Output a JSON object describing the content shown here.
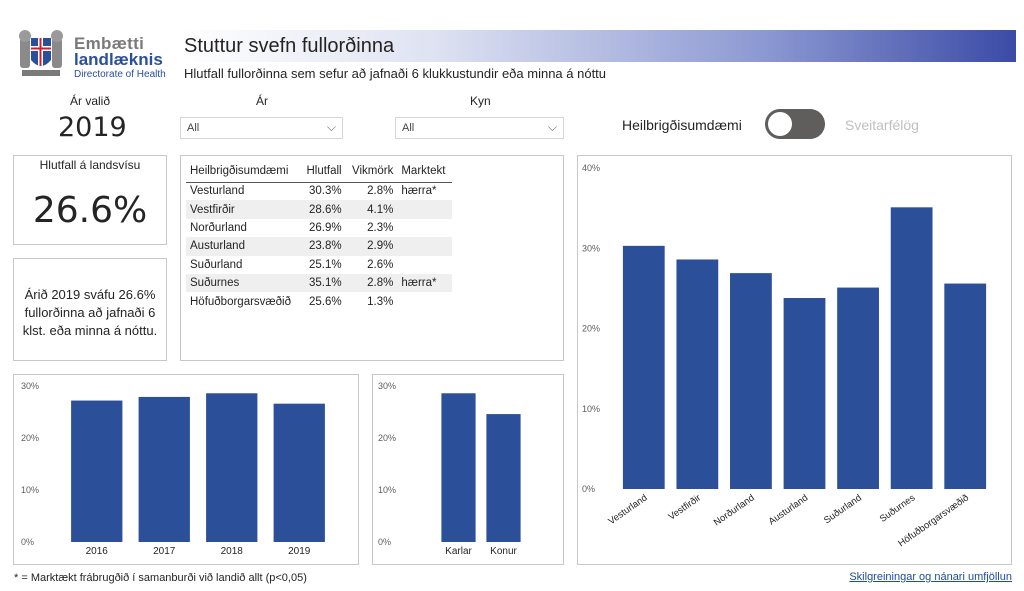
{
  "logo": {
    "line1": "Embætti",
    "line2": "landlæknis",
    "line3": "Directorate of Health"
  },
  "header": {
    "title": "Stuttur svefn fullorðinna",
    "subtitle": "Hlutfall fullorðinna sem sefur að jafnaði 6 klukkustundir eða minna á nóttu"
  },
  "selected_year": {
    "label": "Ár valið",
    "value": "2019"
  },
  "slicers": {
    "year": {
      "label": "Ár",
      "value": "All"
    },
    "gender": {
      "label": "Kyn",
      "value": "All"
    }
  },
  "toggle": {
    "left_label": "Heilbrigðisumdæmi",
    "right_label": "Sveitarfélög",
    "state": "left"
  },
  "kpi": {
    "title": "Hlutfall á landsvísu",
    "value": "26.6%"
  },
  "description": "Árið 2019 sváfu 26.6% fullorðinna að jafnaði 6 klst. eða minna á nóttu.",
  "table": {
    "headers": [
      "Heilbrigðisumdæmi",
      "Hlutfall",
      "Vikmörk",
      "Marktekt"
    ],
    "rows": [
      [
        "Vesturland",
        "30.3%",
        "2.8%",
        "hærra*"
      ],
      [
        "Vestfirðir",
        "28.6%",
        "4.1%",
        ""
      ],
      [
        "Norðurland",
        "26.9%",
        "2.3%",
        ""
      ],
      [
        "Austurland",
        "23.8%",
        "2.9%",
        ""
      ],
      [
        "Suðurland",
        "25.1%",
        "2.6%",
        ""
      ],
      [
        "Suðurnes",
        "35.1%",
        "2.8%",
        "hærra*"
      ],
      [
        "Höfuðborgarsvæðið",
        "25.6%",
        "1.3%",
        ""
      ]
    ]
  },
  "colors": {
    "bar": "#2b4f98",
    "accent": "#1f4aa8"
  },
  "chart_data": [
    {
      "type": "bar",
      "categories": [
        "Vesturland",
        "Vestfirðir",
        "Norðurland",
        "Austurland",
        "Suðurland",
        "Suðurnes",
        "Höfuðborgarsvæðið"
      ],
      "values": [
        30.3,
        28.6,
        26.9,
        23.8,
        25.1,
        35.1,
        25.6
      ],
      "ylim": [
        0,
        40
      ],
      "yticks": [
        "0%",
        "10%",
        "20%",
        "30%",
        "40%"
      ]
    },
    {
      "type": "bar",
      "categories": [
        "2016",
        "2017",
        "2018",
        "2019"
      ],
      "values": [
        27.2,
        27.9,
        28.6,
        26.6
      ],
      "ylim": [
        0,
        30
      ],
      "yticks": [
        "0%",
        "10%",
        "20%",
        "30%"
      ]
    },
    {
      "type": "bar",
      "categories": [
        "Karlar",
        "Konur"
      ],
      "values": [
        28.6,
        24.6
      ],
      "ylim": [
        0,
        30
      ],
      "yticks": [
        "0%",
        "10%",
        "20%",
        "30%"
      ]
    }
  ],
  "footnote": "* = Marktækt frábrugðið í samanburði við landið allt (p<0,05)",
  "footer_link": "Skilgreiningar og nánari umfjöllun"
}
